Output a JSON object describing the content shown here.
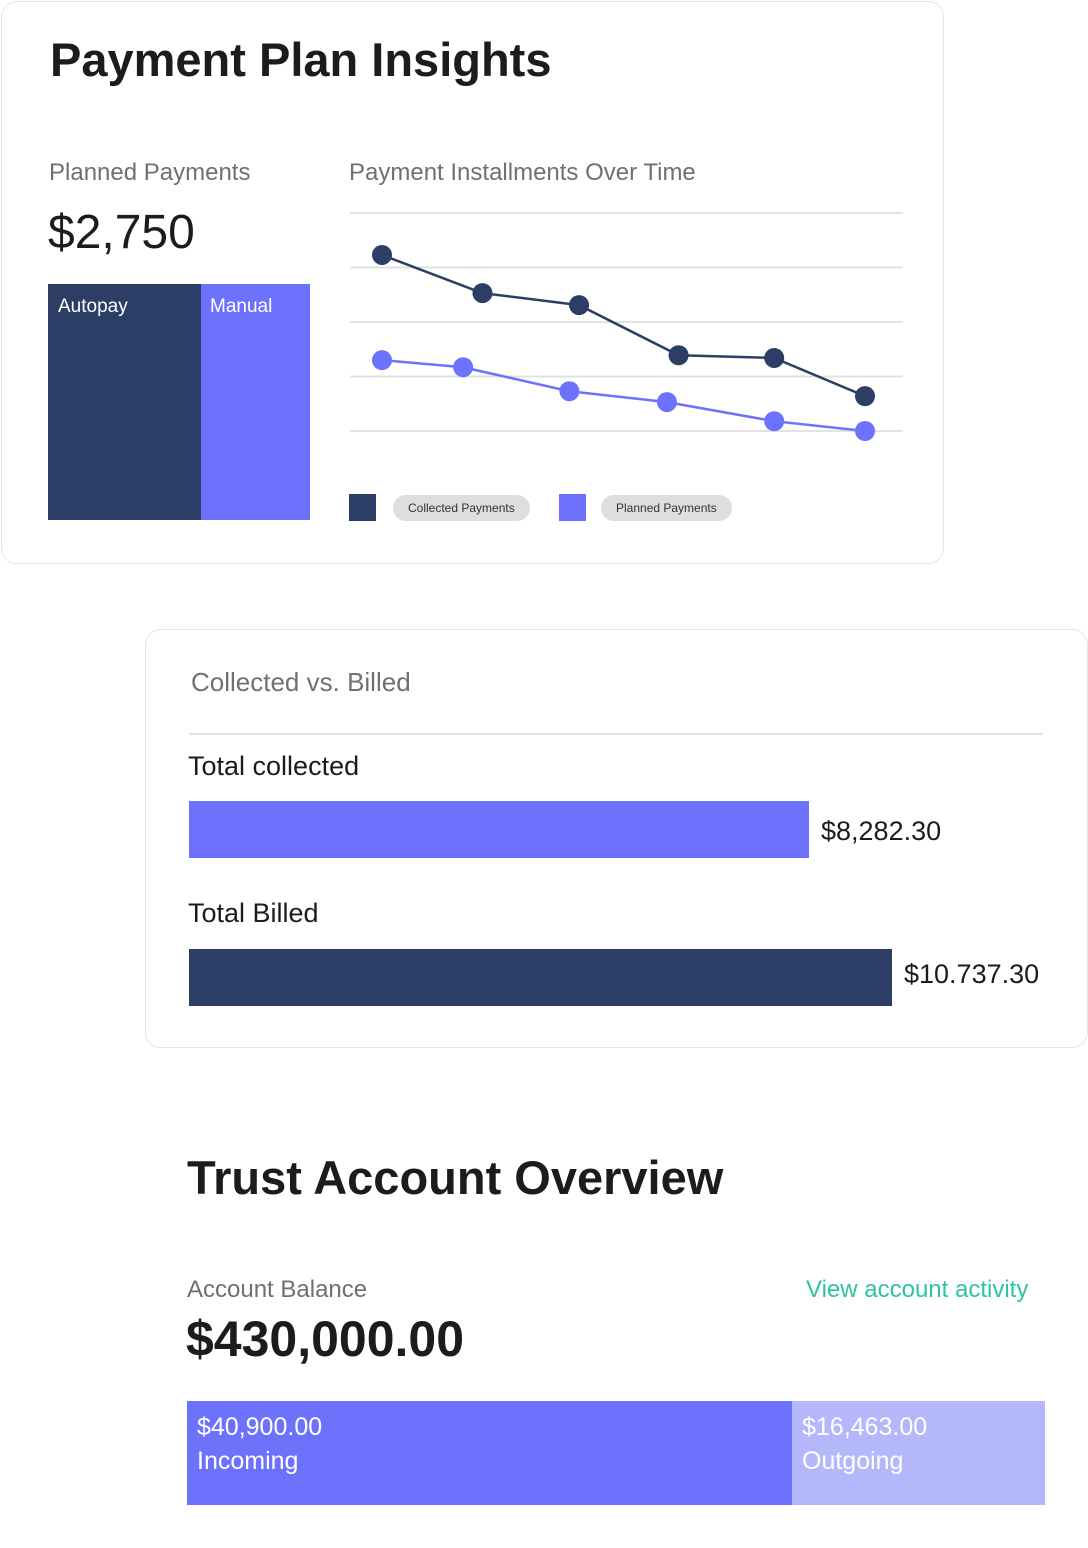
{
  "payment_plan": {
    "title": "Payment Plan Insights",
    "planned_label": "Planned Payments",
    "planned_amount": "$2,750",
    "split": [
      {
        "label": "Autopay",
        "color": "#2c3e66"
      },
      {
        "label": "Manual",
        "color": "#6c72fb"
      }
    ],
    "chart_title": "Payment Installments Over Time"
  },
  "chart_data": {
    "type": "line",
    "title": "Payment Installments Over Time",
    "xlabel": "",
    "ylabel": "",
    "ylim": [
      0,
      4
    ],
    "grid": true,
    "legend": "bottom-left",
    "series": [
      {
        "name": "Collected Payments",
        "color": "#2c3e66",
        "x": [
          0,
          1.04,
          2.04,
          3.07,
          4.06,
          5
        ],
        "values": [
          3.23,
          2.53,
          2.31,
          1.39,
          1.34,
          0.64
        ]
      },
      {
        "name": "Planned Payments",
        "color": "#6c72fb",
        "x": [
          0,
          0.84,
          1.94,
          2.95,
          4.06,
          5
        ],
        "values": [
          1.3,
          1.17,
          0.73,
          0.53,
          0.18,
          0.0
        ]
      }
    ]
  },
  "collected_vs_billed": {
    "title": "Collected vs. Billed",
    "rows": [
      {
        "label": "Total collected",
        "value": "$8,282.30",
        "amount": 8282.3,
        "color": "#6c72fb"
      },
      {
        "label": "Total Billed",
        "value": "$10.737.30",
        "amount": 10737.3,
        "color": "#2c3e66"
      }
    ]
  },
  "trust": {
    "title": "Trust Account Overview",
    "balance_label": "Account Balance",
    "balance": "$430,000.00",
    "activity_link": "View account activity",
    "accent": "#2ec4a0",
    "incoming": {
      "amount": "$40,900.00",
      "label": "Incoming",
      "color": "#6c72fb"
    },
    "outgoing": {
      "amount": "$16,463.00",
      "label": "Outgoing",
      "color": "#b4b7fa"
    }
  }
}
